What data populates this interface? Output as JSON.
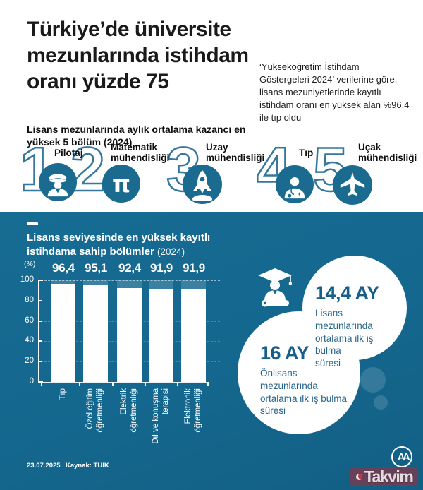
{
  "header": {
    "title_lines": [
      "Türkiye’de üniversite",
      "mezunlarında istihdam",
      "oranı yüzde 75"
    ],
    "note": "‘Yükseköğretim İstihdam Göstergeleri 2024’ verilerine göre, lisans mezuniyetlerinde kayıtlı istihdam oranı en yüksek alan %96,4 ile tıp oldu",
    "subtitle": "Lisans mezunlarında aylık ortalama kazancı en yüksek 5 bölüm (2024)"
  },
  "ranking": {
    "items": [
      {
        "rank": "1",
        "label": "Pilotaj",
        "icon": "pilot-icon"
      },
      {
        "rank": "2",
        "label": "Matematik mühendisliği",
        "icon": "pi-icon"
      },
      {
        "rank": "3",
        "label": "Uzay mühendisliği",
        "icon": "rocket-icon"
      },
      {
        "rank": "4",
        "label": "Tıp",
        "icon": "doctor-icon"
      },
      {
        "rank": "5",
        "label": "Uçak mühendisliği",
        "icon": "plane-icon"
      }
    ]
  },
  "icons": {
    "pi_glyph": "π"
  },
  "chart": {
    "title_line1": "Lisans seviyesinde en yüksek kayıtlı",
    "title_line2": "istihdama sahip bölümler",
    "title_year": "(2024)",
    "unit_label": "(%)",
    "y_tick_labels": [
      "100",
      "80",
      "60",
      "40",
      "20",
      "0"
    ]
  },
  "chart_data": {
    "type": "bar",
    "title": "Lisans seviyesinde en yüksek kayıtlı istihdama sahip bölümler (2024)",
    "categories": [
      "Tıp",
      "Özel eğitim öğretmenliği",
      "Elektrik öğretmenliği",
      "Dil ve konuşma terapisi",
      "Elektronik öğretmenliği"
    ],
    "values": [
      96.4,
      95.1,
      92.4,
      91.9,
      91.9
    ],
    "value_labels": [
      "96,4",
      "95,1",
      "92,4",
      "91,9",
      "91,9"
    ],
    "xlabel": "",
    "ylabel": "(%)",
    "ylim": [
      0,
      100
    ],
    "yticks": [
      0,
      20,
      40,
      60,
      80,
      100
    ],
    "grid": "dashed horizontal",
    "bar_color": "#ffffff",
    "background_color": "#14678e"
  },
  "stats": [
    {
      "value": "14,4 AY",
      "desc_lines": [
        "Lisans mezunlarında",
        "ortalama ilk iş bulma",
        "süresi"
      ],
      "icon": "graduate-icon"
    },
    {
      "value": "16 AY",
      "desc_lines": [
        "Önlisans",
        "mezunlarında",
        "ortalama ilk iş bulma",
        "süresi"
      ]
    }
  ],
  "footer": {
    "date": "23.07.2025",
    "source_label": "Kaynak: TÜİK",
    "agency_label": "AA",
    "brand_label": "Takvim"
  },
  "colors": {
    "dark_background": "#14678e",
    "icon_circle": "#1b6b91",
    "number_outline": "#35789d",
    "stat_value_text": "#175e88",
    "bar_fill": "#ffffff",
    "brand_red": "#b9232d"
  }
}
